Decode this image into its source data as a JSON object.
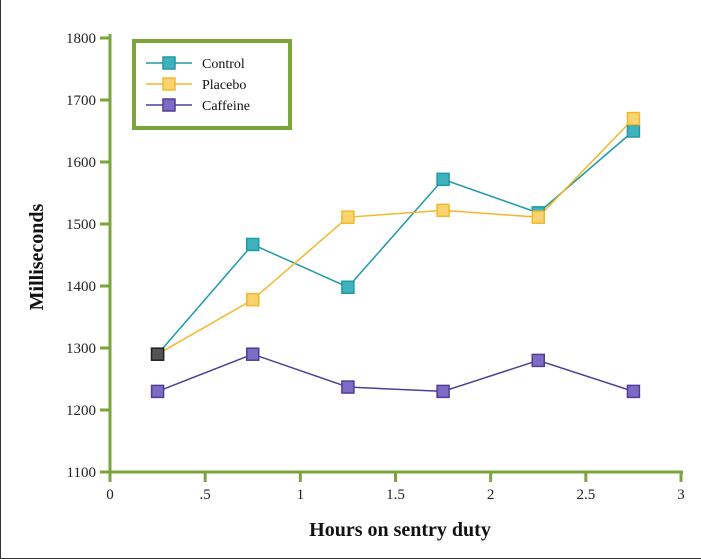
{
  "chart_data": {
    "type": "line",
    "title": "",
    "xlabel": "Hours on sentry duty",
    "ylabel": "Milliseconds",
    "xlim": [
      0,
      3
    ],
    "ylim": [
      1100,
      1800
    ],
    "x_ticks": [
      0,
      0.5,
      1,
      1.5,
      2,
      2.5,
      3
    ],
    "x_tick_labels": [
      "0",
      ".5",
      "1",
      "1.5",
      "2",
      "2.5",
      "3"
    ],
    "y_ticks": [
      1100,
      1200,
      1300,
      1400,
      1500,
      1600,
      1700,
      1800
    ],
    "y_tick_labels": [
      "1100",
      "1200",
      "1300",
      "1400",
      "1500",
      "1600",
      "1700",
      "1800"
    ],
    "grid": false,
    "legend_position": "top-left",
    "axis_color": "#7aa53a",
    "series": [
      {
        "name": "Control",
        "color": "#1f9aa8",
        "marker_fill": "#3fb3bd",
        "x": [
          0.25,
          0.75,
          1.25,
          1.75,
          2.25,
          2.75
        ],
        "values": [
          1290,
          1467,
          1398,
          1572,
          1518,
          1650
        ]
      },
      {
        "name": "Placebo",
        "color": "#f2b829",
        "marker_fill": "#f9d36e",
        "x": [
          0.25,
          0.75,
          1.25,
          1.75,
          2.25,
          2.75
        ],
        "values": [
          1290,
          1378,
          1511,
          1522,
          1511,
          1670
        ]
      },
      {
        "name": "Caffeine",
        "color": "#4c3f98",
        "marker_fill": "#7e6bc4",
        "x": [
          0.25,
          0.75,
          1.25,
          1.75,
          2.25,
          2.75
        ],
        "values": [
          1230,
          1290,
          1237,
          1230,
          1280,
          1230
        ]
      }
    ],
    "annotations": [
      {
        "note": "overlapping start point marker",
        "x": 0.25,
        "y": 1290,
        "color": "#555555"
      }
    ]
  }
}
